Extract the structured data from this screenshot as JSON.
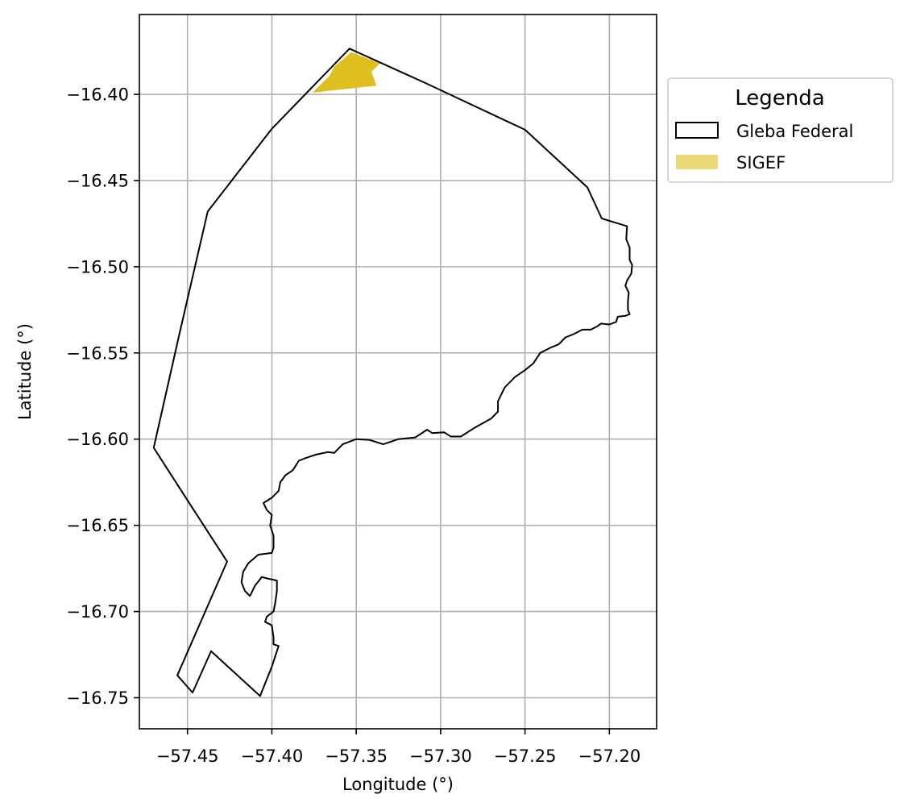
{
  "chart_data": {
    "type": "map",
    "xlabel": "Longitude (°)",
    "ylabel": "Latitude (°)",
    "xlim": [
      -57.4785,
      -57.172
    ],
    "ylim": [
      -16.768,
      -16.3537
    ],
    "x_ticks": [
      -57.45,
      -57.4,
      -57.35,
      -57.3,
      -57.25,
      -57.2
    ],
    "x_tick_labels": [
      "−57.45",
      "−57.40",
      "−57.35",
      "−57.30",
      "−57.25",
      "−57.20"
    ],
    "y_ticks": [
      -16.4,
      -16.45,
      -16.5,
      -16.55,
      -16.6,
      -16.65,
      -16.7,
      -16.75
    ],
    "y_tick_labels": [
      "−16.40",
      "−16.45",
      "−16.50",
      "−16.55",
      "−16.60",
      "−16.65",
      "−16.70",
      "−16.75"
    ],
    "grid": true,
    "legend": {
      "title": "Legenda",
      "position": "outside-right-top",
      "entries": [
        {
          "label": "Gleba Federal",
          "style": "outline"
        },
        {
          "label": "SIGEF",
          "style": "fill"
        }
      ]
    },
    "layers": [
      {
        "name": "Gleba Federal",
        "edge_color": "#000000",
        "fill": "none",
        "polygon": [
          [
            -57.354,
            -16.3735
          ],
          [
            -57.31,
            -16.393
          ],
          [
            -57.25,
            -16.4205
          ],
          [
            -57.213,
            -16.454
          ],
          [
            -57.2045,
            -16.472
          ],
          [
            -57.1895,
            -16.4765
          ],
          [
            -57.19,
            -16.484
          ],
          [
            -57.188,
            -16.489
          ],
          [
            -57.188,
            -16.496
          ],
          [
            -57.1865,
            -16.499
          ],
          [
            -57.187,
            -16.504
          ],
          [
            -57.1895,
            -16.508
          ],
          [
            -57.1905,
            -16.511
          ],
          [
            -57.1885,
            -16.515
          ],
          [
            -57.189,
            -16.52
          ],
          [
            -57.189,
            -16.525
          ],
          [
            -57.188,
            -16.5275
          ],
          [
            -57.1905,
            -16.5285
          ],
          [
            -57.195,
            -16.529
          ],
          [
            -57.196,
            -16.532
          ],
          [
            -57.2,
            -16.5335
          ],
          [
            -57.205,
            -16.533
          ],
          [
            -57.207,
            -16.5345
          ],
          [
            -57.211,
            -16.5365
          ],
          [
            -57.216,
            -16.5365
          ],
          [
            -57.221,
            -16.539
          ],
          [
            -57.226,
            -16.541
          ],
          [
            -57.23,
            -16.545
          ],
          [
            -57.235,
            -16.547
          ],
          [
            -57.241,
            -16.55
          ],
          [
            -57.245,
            -16.556
          ],
          [
            -57.25,
            -16.56
          ],
          [
            -57.256,
            -16.564
          ],
          [
            -57.262,
            -16.57
          ],
          [
            -57.266,
            -16.578
          ],
          [
            -57.266,
            -16.584
          ],
          [
            -57.27,
            -16.588
          ],
          [
            -57.28,
            -16.5935
          ],
          [
            -57.288,
            -16.5985
          ],
          [
            -57.294,
            -16.5985
          ],
          [
            -57.298,
            -16.596
          ],
          [
            -57.305,
            -16.5965
          ],
          [
            -57.308,
            -16.5945
          ],
          [
            -57.315,
            -16.599
          ],
          [
            -57.325,
            -16.6
          ],
          [
            -57.334,
            -16.603
          ],
          [
            -57.342,
            -16.6005
          ],
          [
            -57.35,
            -16.6
          ],
          [
            -57.358,
            -16.603
          ],
          [
            -57.363,
            -16.608
          ],
          [
            -57.367,
            -16.6075
          ],
          [
            -57.374,
            -16.609
          ],
          [
            -57.38,
            -16.611
          ],
          [
            -57.384,
            -16.6125
          ],
          [
            -57.3875,
            -16.618
          ],
          [
            -57.392,
            -16.621
          ],
          [
            -57.395,
            -16.625
          ],
          [
            -57.396,
            -16.63
          ],
          [
            -57.4,
            -16.634
          ],
          [
            -57.405,
            -16.637
          ],
          [
            -57.403,
            -16.641
          ],
          [
            -57.4,
            -16.644
          ],
          [
            -57.401,
            -16.65
          ],
          [
            -57.399,
            -16.656
          ],
          [
            -57.399,
            -16.663
          ],
          [
            -57.4,
            -16.666
          ],
          [
            -57.408,
            -16.667
          ],
          [
            -57.414,
            -16.672
          ],
          [
            -57.417,
            -16.677
          ],
          [
            -57.418,
            -16.683
          ],
          [
            -57.416,
            -16.688
          ],
          [
            -57.413,
            -16.691
          ],
          [
            -57.41,
            -16.685
          ],
          [
            -57.406,
            -16.68
          ],
          [
            -57.402,
            -16.681
          ],
          [
            -57.397,
            -16.682
          ],
          [
            -57.397,
            -16.688
          ],
          [
            -57.398,
            -16.695
          ],
          [
            -57.399,
            -16.7
          ],
          [
            -57.403,
            -16.703
          ],
          [
            -57.404,
            -16.706
          ],
          [
            -57.4,
            -16.708
          ],
          [
            -57.399,
            -16.715
          ],
          [
            -57.399,
            -16.719
          ],
          [
            -57.396,
            -16.72
          ],
          [
            -57.4,
            -16.732
          ],
          [
            -57.407,
            -16.749
          ],
          [
            -57.436,
            -16.723
          ],
          [
            -57.447,
            -16.747
          ],
          [
            -57.456,
            -16.737
          ],
          [
            -57.4265,
            -16.671
          ],
          [
            -57.447,
            -16.64
          ],
          [
            -57.47,
            -16.605
          ],
          [
            -57.455,
            -16.54
          ],
          [
            -57.438,
            -16.468
          ],
          [
            -57.4,
            -16.42
          ]
        ]
      },
      {
        "name": "SIGEF",
        "fill_color": "#dfbf1f",
        "polygon": [
          [
            -57.353,
            -16.3755
          ],
          [
            -57.336,
            -16.382
          ],
          [
            -57.341,
            -16.387
          ],
          [
            -57.338,
            -16.395
          ],
          [
            -57.376,
            -16.399
          ],
          [
            -57.366,
            -16.3895
          ],
          [
            -57.363,
            -16.384
          ],
          [
            -57.357,
            -16.379
          ]
        ]
      }
    ]
  }
}
